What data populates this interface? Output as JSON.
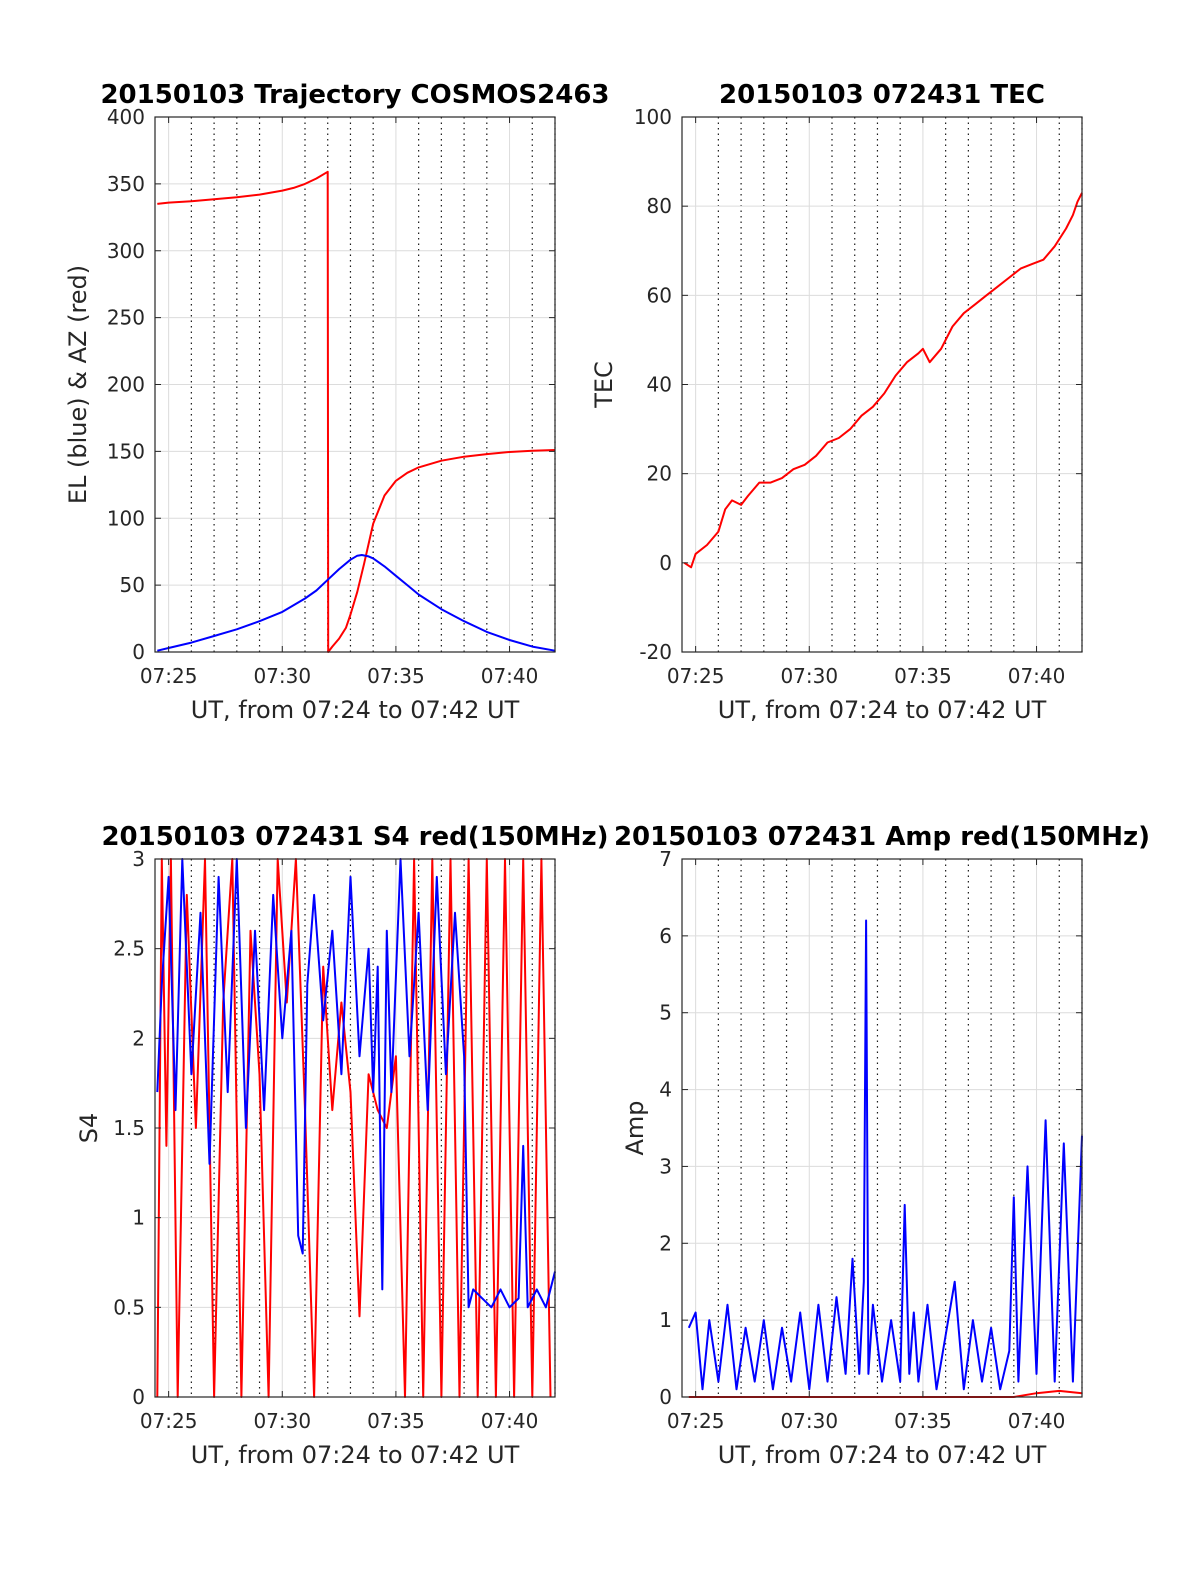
{
  "chart_data": [
    {
      "type": "line",
      "title": "20150103 Trajectory COSMOS2463",
      "xlabel": "UT, from 07:24 to 07:42 UT",
      "ylabel": "EL (blue) & AZ (red)",
      "x_unit": "minutes past 07:00 UT",
      "xlim": [
        24.4,
        42
      ],
      "ylim": [
        0,
        400
      ],
      "xticks": [
        25,
        30,
        35,
        40
      ],
      "xtick_labels": [
        "07:25",
        "07:30",
        "07:35",
        "07:40"
      ],
      "yticks": [
        0,
        50,
        100,
        150,
        200,
        250,
        300,
        350,
        400
      ],
      "ytick_labels": [
        "0",
        "50",
        "100",
        "150",
        "200",
        "250",
        "300",
        "350",
        "400"
      ],
      "grid": true,
      "series": [
        {
          "color": "#ff0000",
          "x": [
            24.5,
            25,
            26,
            27,
            28,
            29,
            30,
            30.5,
            31,
            31.5,
            32,
            32.02,
            32.2,
            32.5,
            32.8,
            33,
            33.3,
            33.6,
            34,
            34.5,
            35,
            35.5,
            36,
            37,
            38,
            39,
            40,
            41,
            42
          ],
          "y": [
            335,
            336,
            337,
            338.5,
            340,
            342,
            345,
            347,
            350,
            354,
            359,
            0,
            4,
            10,
            18,
            28,
            45,
            66,
            96,
            117,
            128,
            134,
            138,
            143,
            146,
            148,
            149.5,
            150.5,
            151
          ]
        },
        {
          "color": "#0000ff",
          "x": [
            24.5,
            25,
            26,
            27,
            28,
            29,
            30,
            31,
            31.5,
            32,
            32.5,
            33,
            33.3,
            33.5,
            33.8,
            34,
            34.5,
            35,
            35.5,
            36,
            37,
            38,
            39,
            40,
            41,
            42
          ],
          "y": [
            1,
            3,
            7,
            12,
            17,
            23,
            30,
            40,
            46,
            54,
            62,
            69,
            72,
            72.5,
            71.5,
            70,
            64,
            57,
            50,
            43,
            32,
            23,
            15,
            9,
            4,
            1
          ]
        }
      ]
    },
    {
      "type": "line",
      "title": "20150103 072431 TEC",
      "xlabel": "UT, from 07:24 to 07:42 UT",
      "ylabel": "TEC",
      "x_unit": "minutes past 07:00 UT",
      "xlim": [
        24.4,
        42
      ],
      "ylim": [
        -20,
        100
      ],
      "xticks": [
        25,
        30,
        35,
        40
      ],
      "xtick_labels": [
        "07:25",
        "07:30",
        "07:35",
        "07:40"
      ],
      "yticks": [
        -20,
        0,
        20,
        40,
        60,
        80,
        100
      ],
      "ytick_labels": [
        "-20",
        "0",
        "20",
        "40",
        "60",
        "80",
        "100"
      ],
      "grid": true,
      "series": [
        {
          "color": "#ff0000",
          "x": [
            24.5,
            24.8,
            25,
            25.5,
            26,
            26.3,
            26.6,
            27,
            27.3,
            27.8,
            28.3,
            28.8,
            29.3,
            29.8,
            30.3,
            30.8,
            31.3,
            31.8,
            32.3,
            32.8,
            33.3,
            33.8,
            34.3,
            34.8,
            35.0,
            35.3,
            35.8,
            36.3,
            36.8,
            37.3,
            37.8,
            38.3,
            38.8,
            39.3,
            39.8,
            40.3,
            40.8,
            41.3,
            41.6,
            41.8,
            42
          ],
          "y": [
            0,
            -1,
            2,
            4,
            7,
            12,
            14,
            13,
            15,
            18,
            18,
            19,
            21,
            22,
            24,
            27,
            28,
            30,
            33,
            35,
            38,
            42,
            45,
            47,
            48,
            45,
            48,
            53,
            56,
            58,
            60,
            62,
            64,
            66,
            67,
            68,
            71,
            75,
            78,
            81,
            83
          ]
        }
      ]
    },
    {
      "type": "line",
      "title": "20150103 072431 S4 red(150MHz)",
      "xlabel": "UT, from 07:24 to 07:42 UT",
      "ylabel": "S4",
      "x_unit": "minutes past 07:00 UT",
      "xlim": [
        24.4,
        42
      ],
      "ylim": [
        0,
        3
      ],
      "xticks": [
        25,
        30,
        35,
        40
      ],
      "xtick_labels": [
        "07:25",
        "07:30",
        "07:35",
        "07:40"
      ],
      "yticks": [
        0,
        0.5,
        1,
        1.5,
        2,
        2.5,
        3
      ],
      "ytick_labels": [
        "0",
        "0.5",
        "1",
        "1.5",
        "2",
        "2.5",
        "3"
      ],
      "grid": true,
      "series": [
        {
          "color": "#ff0000",
          "x": [
            24.5,
            24.7,
            24.9,
            25.1,
            25.4,
            25.8,
            26.2,
            26.6,
            27.0,
            27.4,
            27.8,
            28.2,
            28.6,
            29.0,
            29.4,
            29.8,
            30.2,
            30.6,
            31.0,
            31.4,
            31.8,
            32.2,
            32.6,
            33.0,
            33.4,
            33.8,
            34.2,
            34.6,
            35.0,
            35.4,
            35.8,
            36.2,
            36.6,
            37.0,
            37.4,
            37.8,
            38.2,
            38.6,
            39.0,
            39.4,
            39.8,
            40.2,
            40.6,
            41.0,
            41.4,
            41.8
          ],
          "y": [
            0,
            3,
            1.4,
            3,
            0,
            2.8,
            1.5,
            3,
            0,
            2.2,
            3,
            0,
            2.6,
            1.8,
            0,
            3,
            2.2,
            3,
            1.6,
            0,
            2.4,
            1.6,
            2.2,
            1.7,
            0.45,
            1.8,
            1.6,
            1.5,
            1.9,
            0,
            3,
            0,
            3,
            0,
            3,
            0,
            3,
            0,
            3,
            0,
            3,
            0,
            3,
            0,
            3,
            0
          ]
        },
        {
          "color": "#0000ff",
          "x": [
            24.5,
            24.7,
            25.0,
            25.3,
            25.6,
            26.0,
            26.4,
            26.8,
            27.2,
            27.6,
            28.0,
            28.4,
            28.8,
            29.2,
            29.6,
            30.0,
            30.4,
            30.7,
            30.9,
            31.1,
            31.4,
            31.8,
            32.2,
            32.6,
            33.0,
            33.4,
            33.8,
            34.0,
            34.2,
            34.4,
            34.6,
            34.8,
            35.2,
            35.6,
            36.0,
            36.4,
            36.8,
            37.2,
            37.6,
            38.0,
            38.2,
            38.4,
            38.8,
            39.2,
            39.6,
            40.0,
            40.4,
            40.6,
            40.8,
            41.2,
            41.6,
            42
          ],
          "y": [
            1.7,
            2.3,
            2.9,
            1.6,
            3,
            1.8,
            2.7,
            1.3,
            2.9,
            1.7,
            3,
            1.5,
            2.6,
            1.6,
            2.8,
            2.0,
            2.6,
            0.9,
            0.8,
            2.3,
            2.8,
            2.1,
            2.6,
            1.8,
            2.9,
            1.9,
            2.5,
            1.7,
            2.4,
            0.6,
            2.6,
            1.7,
            3,
            1.9,
            2.7,
            1.6,
            2.9,
            1.8,
            2.7,
            1.9,
            0.5,
            0.6,
            0.55,
            0.5,
            0.6,
            0.5,
            0.55,
            1.4,
            0.5,
            0.6,
            0.5,
            0.7
          ]
        }
      ]
    },
    {
      "type": "line",
      "title": "20150103 072431 Amp red(150MHz)",
      "xlabel": "UT, from 07:24 to 07:42 UT",
      "ylabel": "Amp",
      "x_unit": "minutes past 07:00 UT",
      "xlim": [
        24.4,
        42
      ],
      "ylim": [
        0,
        7
      ],
      "xticks": [
        25,
        30,
        35,
        40
      ],
      "xtick_labels": [
        "07:25",
        "07:30",
        "07:35",
        "07:40"
      ],
      "yticks": [
        0,
        1,
        2,
        3,
        4,
        5,
        6,
        7
      ],
      "ytick_labels": [
        "0",
        "1",
        "2",
        "3",
        "4",
        "5",
        "6",
        "7"
      ],
      "grid": true,
      "series": [
        {
          "color": "#0000ff",
          "x": [
            24.7,
            25.0,
            25.3,
            25.6,
            26.0,
            26.4,
            26.8,
            27.2,
            27.6,
            28.0,
            28.4,
            28.8,
            29.2,
            29.6,
            30.0,
            30.4,
            30.8,
            31.2,
            31.6,
            31.9,
            32.2,
            32.4,
            32.5,
            32.6,
            32.8,
            33.2,
            33.6,
            34.0,
            34.2,
            34.4,
            34.6,
            34.8,
            35.2,
            35.6,
            36.0,
            36.4,
            36.8,
            37.2,
            37.6,
            38.0,
            38.4,
            38.8,
            39.0,
            39.2,
            39.6,
            40.0,
            40.4,
            40.8,
            41.2,
            41.6,
            42
          ],
          "y": [
            0.9,
            1.1,
            0.1,
            1.0,
            0.2,
            1.2,
            0.1,
            0.9,
            0.2,
            1.0,
            0.1,
            0.9,
            0.2,
            1.1,
            0.1,
            1.2,
            0.2,
            1.3,
            0.3,
            1.8,
            0.3,
            1.5,
            6.2,
            0.3,
            1.2,
            0.2,
            1.0,
            0.2,
            2.5,
            0.3,
            1.1,
            0.2,
            1.2,
            0.1,
            0.8,
            1.5,
            0.1,
            1.0,
            0.2,
            0.9,
            0.1,
            0.6,
            2.6,
            0.2,
            3.0,
            0.3,
            3.6,
            0.2,
            3.3,
            0.2,
            3.4
          ]
        },
        {
          "color": "#ff0000",
          "x": [
            24.7,
            30.0,
            39.0,
            40.0,
            41.0,
            42.0
          ],
          "y": [
            0,
            0,
            0,
            0.05,
            0.08,
            0.05
          ]
        }
      ]
    }
  ]
}
